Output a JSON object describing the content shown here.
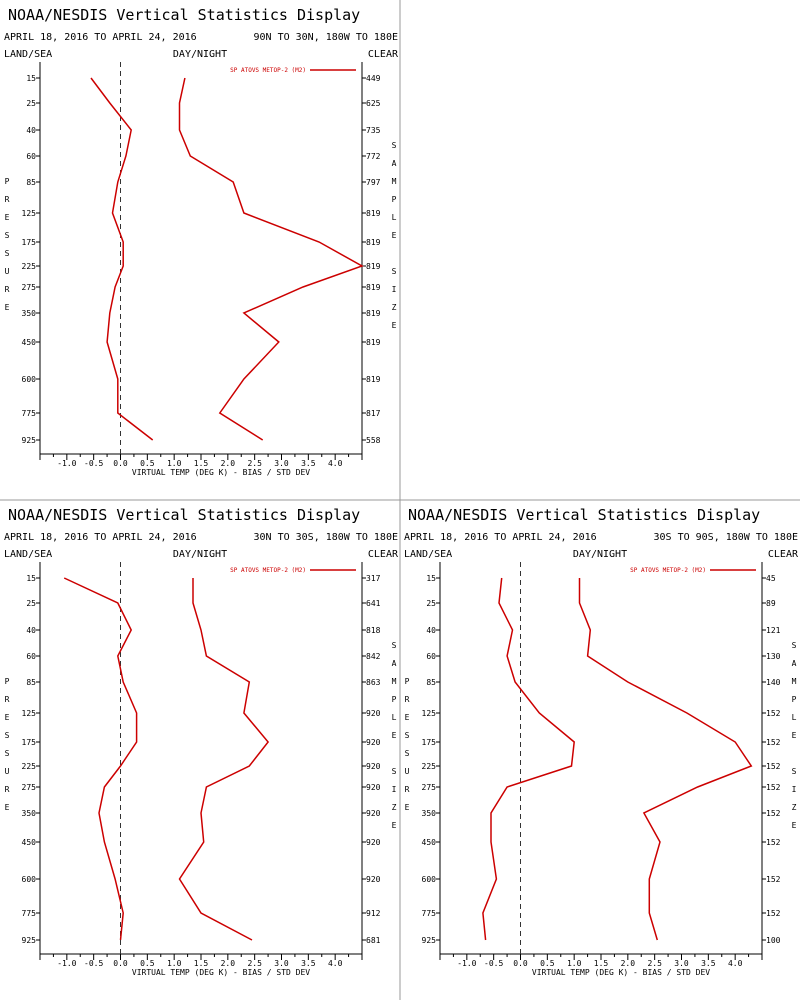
{
  "colors": {
    "series": "#cc0000",
    "axis": "#000000",
    "background": "#ffffff"
  },
  "chart_data": [
    {
      "type": "line",
      "title": "NOAA/NESDIS Vertical Statistics Display",
      "date_range": "APRIL 18, 2016 TO APRIL 24, 2016",
      "region": "90N TO 30N, 180W TO 180E",
      "top_left_label": "LAND/SEA",
      "top_center_label": "DAY/NIGHT",
      "top_right_label": "CLEAR",
      "y_side_label": "PRESSURE",
      "right_side_label_1": "SAMPLE",
      "right_side_label_2": "SIZE",
      "xlabel": "VIRTUAL TEMP (DEG K) - BIAS / STD DEV",
      "legend": "SP ATOVS METOP-2 (M2)",
      "xlim": [
        -1.5,
        4.5
      ],
      "x_ticks": [
        "-1.0",
        "-0.5",
        "0.0",
        "0.5",
        "1.0",
        "1.5",
        "2.0",
        "2.5",
        "3.0",
        "3.5",
        "4.0"
      ],
      "pressure_levels": [
        "15",
        "25",
        "40",
        "60",
        "85",
        "125",
        "175",
        "225",
        "275",
        "350",
        "450",
        "600",
        "775",
        "925"
      ],
      "sample_size": [
        "449",
        "625",
        "735",
        "772",
        "797",
        "819",
        "819",
        "819",
        "819",
        "819",
        "819",
        "819",
        "817",
        "558"
      ],
      "bias": [
        -0.55,
        -0.2,
        0.2,
        0.1,
        -0.05,
        -0.15,
        0.05,
        0.05,
        -0.1,
        -0.2,
        -0.25,
        -0.05,
        -0.05,
        0.6
      ],
      "std_dev": [
        1.2,
        1.1,
        1.1,
        1.3,
        2.1,
        2.3,
        3.7,
        4.5,
        3.4,
        2.3,
        2.95,
        2.3,
        1.85,
        2.65
      ]
    },
    {
      "type": "line",
      "title": "NOAA/NESDIS Vertical Statistics Display",
      "date_range": "APRIL 18, 2016 TO APRIL 24, 2016",
      "region": "30N TO 30S, 180W TO 180E",
      "top_left_label": "LAND/SEA",
      "top_center_label": "DAY/NIGHT",
      "top_right_label": "CLEAR",
      "y_side_label": "PRESSURE",
      "right_side_label_1": "SAMPLE",
      "right_side_label_2": "SIZE",
      "xlabel": "VIRTUAL TEMP (DEG K) - BIAS / STD DEV",
      "legend": "SP ATOVS METOP-2 (M2)",
      "xlim": [
        -1.5,
        4.5
      ],
      "x_ticks": [
        "-1.0",
        "-0.5",
        "0.0",
        "0.5",
        "1.0",
        "1.5",
        "2.0",
        "2.5",
        "3.0",
        "3.5",
        "4.0"
      ],
      "pressure_levels": [
        "15",
        "25",
        "40",
        "60",
        "85",
        "125",
        "175",
        "225",
        "275",
        "350",
        "450",
        "600",
        "775",
        "925"
      ],
      "sample_size": [
        "317",
        "641",
        "818",
        "842",
        "863",
        "920",
        "920",
        "920",
        "920",
        "920",
        "920",
        "920",
        "912",
        "681"
      ],
      "bias": [
        -1.05,
        -0.05,
        0.2,
        -0.05,
        0.05,
        0.3,
        0.3,
        0.0,
        -0.3,
        -0.4,
        -0.3,
        -0.1,
        0.05,
        0.0
      ],
      "std_dev": [
        1.35,
        1.35,
        1.5,
        1.6,
        2.4,
        2.3,
        2.75,
        2.4,
        1.6,
        1.5,
        1.55,
        1.1,
        1.5,
        2.45
      ]
    },
    {
      "type": "line",
      "title": "NOAA/NESDIS Vertical Statistics Display",
      "date_range": "APRIL 18, 2016 TO APRIL 24, 2016",
      "region": "30S TO 90S, 180W TO 180E",
      "top_left_label": "LAND/SEA",
      "top_center_label": "DAY/NIGHT",
      "top_right_label": "CLEAR",
      "y_side_label": "PRESSURE",
      "right_side_label_1": "SAMPLE",
      "right_side_label_2": "SIZE",
      "xlabel": "VIRTUAL TEMP (DEG K) - BIAS / STD DEV",
      "legend": "SP ATOVS METOP-2 (M2)",
      "xlim": [
        -1.5,
        4.5
      ],
      "x_ticks": [
        "-1.0",
        "-0.5",
        "0.0",
        "0.5",
        "1.0",
        "1.5",
        "2.0",
        "2.5",
        "3.0",
        "3.5",
        "4.0"
      ],
      "pressure_levels": [
        "15",
        "25",
        "40",
        "60",
        "85",
        "125",
        "175",
        "225",
        "275",
        "350",
        "450",
        "600",
        "775",
        "925"
      ],
      "sample_size": [
        "45",
        "89",
        "121",
        "130",
        "140",
        "152",
        "152",
        "152",
        "152",
        "152",
        "152",
        "152",
        "152",
        "100"
      ],
      "bias": [
        -0.35,
        -0.4,
        -0.15,
        -0.25,
        -0.1,
        0.35,
        1.0,
        0.95,
        -0.25,
        -0.55,
        -0.55,
        -0.45,
        -0.7,
        -0.65
      ],
      "std_dev": [
        1.1,
        1.1,
        1.3,
        1.25,
        2.0,
        3.1,
        4.0,
        4.3,
        3.3,
        2.3,
        2.6,
        2.4,
        2.4,
        2.55
      ]
    }
  ]
}
